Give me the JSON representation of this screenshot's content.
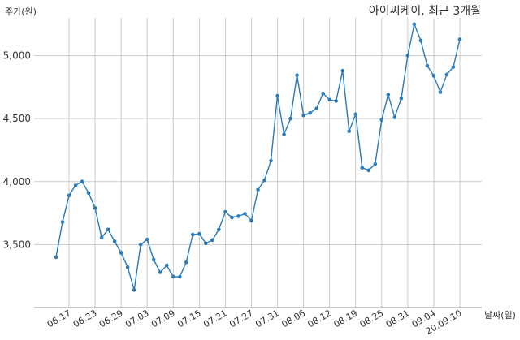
{
  "chart_data": {
    "type": "line",
    "title": "아이씨케이, 최근 3개월",
    "ylabel": "주가(원)",
    "xlabel": "날짜(일)",
    "ylim": [
      3000,
      5300
    ],
    "grid": true,
    "yticks": [
      3500,
      4000,
      4500,
      5000
    ],
    "ytick_labels": [
      "3,500",
      "4,000",
      "4,500",
      "5,000"
    ],
    "xtick_labels": [
      "06.17",
      "06.23",
      "06.29",
      "07.03",
      "07.09",
      "07.15",
      "07.21",
      "07.27",
      "07.31",
      "08.06",
      "08.12",
      "08.19",
      "08.25",
      "08.31",
      "09.04",
      "20.09.10"
    ],
    "xtick_points": [
      2,
      6,
      10,
      14,
      18,
      22,
      26,
      30,
      34,
      38,
      42,
      46,
      50,
      54,
      58,
      62
    ],
    "line_color": "#2b7bb9",
    "series": [
      {
        "values": [
          3400,
          3680,
          3890,
          3970,
          4000,
          3910,
          3790,
          3555,
          3620,
          3525,
          3435,
          3320,
          3140,
          3500,
          3540,
          3380,
          3280,
          3335,
          3245,
          3245,
          3360,
          3580,
          3585,
          3510,
          3535,
          3620,
          3760,
          3715,
          3725,
          3745,
          3690,
          3935,
          4010,
          4165,
          4680,
          4375,
          4500,
          4845,
          4525,
          4545,
          4580,
          4700,
          4650,
          4640,
          4880,
          4400,
          4535,
          4110,
          4090,
          4140,
          4490,
          4690,
          4510,
          4660,
          5000,
          5250,
          5120,
          4920,
          4840,
          4710,
          4850,
          4910,
          5130
        ]
      }
    ]
  }
}
